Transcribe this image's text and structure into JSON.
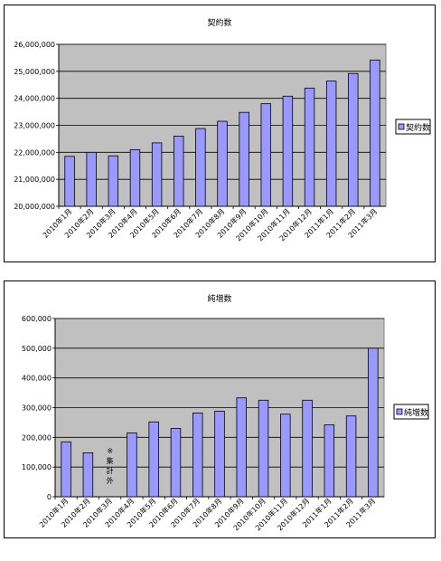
{
  "chart_data": [
    {
      "type": "bar",
      "title": "契約数",
      "categories": [
        "2010年1月",
        "2010年2月",
        "2010年3月",
        "2010年4月",
        "2010年5月",
        "2010年6月",
        "2010年7月",
        "2010年8月",
        "2010年9月",
        "2010年10月",
        "2010年11月",
        "2010年12月",
        "2011年1月",
        "2011年2月",
        "2011年3月"
      ],
      "series": [
        {
          "name": "契約数",
          "values": [
            21850000,
            22000000,
            21870000,
            22100000,
            22350000,
            22600000,
            22880000,
            23150000,
            23480000,
            23800000,
            24080000,
            24380000,
            24640000,
            24920000,
            25420000
          ]
        }
      ],
      "ylim": [
        20000000,
        26000000
      ],
      "yticks": [
        20000000,
        21000000,
        22000000,
        23000000,
        24000000,
        25000000,
        26000000
      ],
      "ytick_labels": [
        "20,000,000",
        "21,000,000",
        "22,000,000",
        "23,000,000",
        "24,000,000",
        "25,000,000",
        "26,000,000"
      ],
      "grid": true,
      "legend": "right",
      "bar_color": "#9999ff",
      "plot_background": "#c0c0c0"
    },
    {
      "type": "bar",
      "title": "純増数",
      "categories": [
        "2010年1月",
        "2010年2月",
        "2010年3月",
        "2010年4月",
        "2010年5月",
        "2010年6月",
        "2010年7月",
        "2010年8月",
        "2010年9月",
        "2010年10月",
        "2010年11月",
        "2010年12月",
        "2011年1月",
        "2011年2月",
        "2011年3月"
      ],
      "series": [
        {
          "name": "純増数",
          "values": [
            185000,
            148000,
            null,
            215000,
            252000,
            230000,
            282000,
            288000,
            333000,
            325000,
            278000,
            325000,
            242000,
            272000,
            500000
          ]
        }
      ],
      "ylim": [
        0,
        600000
      ],
      "yticks": [
        0,
        100000,
        200000,
        300000,
        400000,
        500000,
        600000
      ],
      "ytick_labels": [
        "0",
        "100,000",
        "200,000",
        "300,000",
        "400,000",
        "500,000",
        "600,000"
      ],
      "annotation": {
        "category_index": 2,
        "chars": [
          "※",
          "集",
          "計",
          "外"
        ]
      },
      "grid": true,
      "legend": "right",
      "bar_color": "#9999ff",
      "plot_background": "#c0c0c0"
    }
  ]
}
